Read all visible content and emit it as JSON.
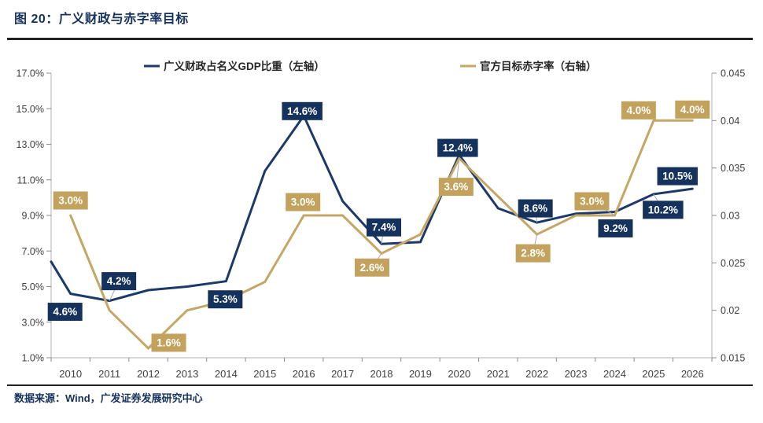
{
  "header": {
    "title": "图 20：广义财政与赤字率目标"
  },
  "footer": {
    "source": "数据来源：Wind，广发证券发展研究中心"
  },
  "colors": {
    "navy_line": "#1B3A69",
    "navy_box": "#15325C",
    "tan_line": "#C5A765",
    "tan_box": "#C2A25C",
    "axis_text": "#404040",
    "axis_line": "#BFBFBF",
    "tick": "#8C8C8C",
    "leader": "#A9A9A9",
    "label_text": "#FFFFFF",
    "legend_text": "#262626",
    "rule": "#222222"
  },
  "chart_data": {
    "type": "line",
    "title": "广义财政与赤字率目标",
    "categories": [
      "2010",
      "2011",
      "2012",
      "2013",
      "2014",
      "2015",
      "2016",
      "2017",
      "2018",
      "2019",
      "2020",
      "2021",
      "2022",
      "2023",
      "2024",
      "2025",
      "2026"
    ],
    "grid": false,
    "legend_position": "top",
    "left_axis": {
      "min": 1.0,
      "max": 17.0,
      "step": 2.0,
      "tick_values": [
        17,
        15,
        13,
        11,
        9,
        7,
        5,
        3,
        1
      ],
      "tick_labels": [
        "17.0%",
        "15.0%",
        "13.0%",
        "11.0%",
        "9.0%",
        "7.0%",
        "5.0%",
        "3.0%",
        "1.0%"
      ]
    },
    "right_axis": {
      "min": 0.015,
      "max": 0.045,
      "step": 0.005,
      "tick_values": [
        0.045,
        0.04,
        0.035,
        0.03,
        0.025,
        0.02,
        0.015
      ],
      "tick_labels": [
        "0.045",
        "0.04",
        "0.035",
        "0.03",
        "0.025",
        "0.02",
        "0.015"
      ]
    },
    "series": [
      {
        "name": "广义财政占名义GDP比重（左轴）",
        "axis": "left",
        "color_key": "navy",
        "edge_start_value": 6.4,
        "values": [
          4.6,
          4.2,
          4.8,
          5.0,
          5.3,
          11.5,
          14.6,
          9.8,
          7.4,
          7.5,
          12.4,
          9.4,
          8.6,
          9.1,
          9.2,
          10.2,
          10.5
        ],
        "labels": [
          {
            "i": 0,
            "text": "4.6%",
            "dx": -7,
            "dy": 23,
            "leader": false
          },
          {
            "i": 1,
            "text": "4.2%",
            "dx": 12,
            "dy": -25,
            "leader": true
          },
          {
            "i": 4,
            "text": "5.3%",
            "dx": -1,
            "dy": 23,
            "leader": false
          },
          {
            "i": 6,
            "text": "14.6%",
            "dx": -2,
            "dy": -6,
            "leader": false
          },
          {
            "i": 8,
            "text": "7.4%",
            "dx": 3,
            "dy": -21,
            "leader": true
          },
          {
            "i": 10,
            "text": "12.4%",
            "dx": -2,
            "dy": -9,
            "leader": true
          },
          {
            "i": 12,
            "text": "8.6%",
            "dx": -2,
            "dy": -18,
            "leader": true
          },
          {
            "i": 14,
            "text": "9.2%",
            "dx": 1,
            "dy": 21,
            "leader": false
          },
          {
            "i": 15,
            "text": "10.2%",
            "dx": 12,
            "dy": 20,
            "leader": true
          },
          {
            "i": 16,
            "text": "10.5%",
            "dx": -19,
            "dy": -16,
            "leader": false
          }
        ]
      },
      {
        "name": "官方目标赤字率（右轴）",
        "axis": "right",
        "color_key": "tan",
        "values": [
          0.03,
          0.02,
          0.016,
          0.02,
          0.021,
          0.023,
          0.03,
          0.03,
          0.026,
          0.028,
          0.036,
          0.032,
          0.028,
          0.03,
          0.03,
          0.04,
          0.04
        ],
        "labels": [
          {
            "i": 0,
            "text": "3.0%",
            "dx": 0,
            "dy": -19,
            "leader": false
          },
          {
            "i": 2,
            "text": "1.6%",
            "dx": 26,
            "dy": -7,
            "leader": true
          },
          {
            "i": 6,
            "text": "3.0%",
            "dx": -1,
            "dy": -17,
            "leader": false
          },
          {
            "i": 8,
            "text": "2.6%",
            "dx": -12,
            "dy": 18,
            "leader": true
          },
          {
            "i": 10,
            "text": "3.6%",
            "dx": -4,
            "dy": 36,
            "leader": true
          },
          {
            "i": 12,
            "text": "2.8%",
            "dx": -5,
            "dy": 24,
            "leader": true
          },
          {
            "i": 14,
            "text": "3.0%",
            "dx": -29,
            "dy": -18,
            "leader": true
          },
          {
            "i": 15,
            "text": "4.0%",
            "dx": -19,
            "dy": -13,
            "leader": false
          },
          {
            "i": 16,
            "text": "4.0%",
            "dx": 0,
            "dy": -14,
            "leader": false
          }
        ]
      }
    ]
  }
}
